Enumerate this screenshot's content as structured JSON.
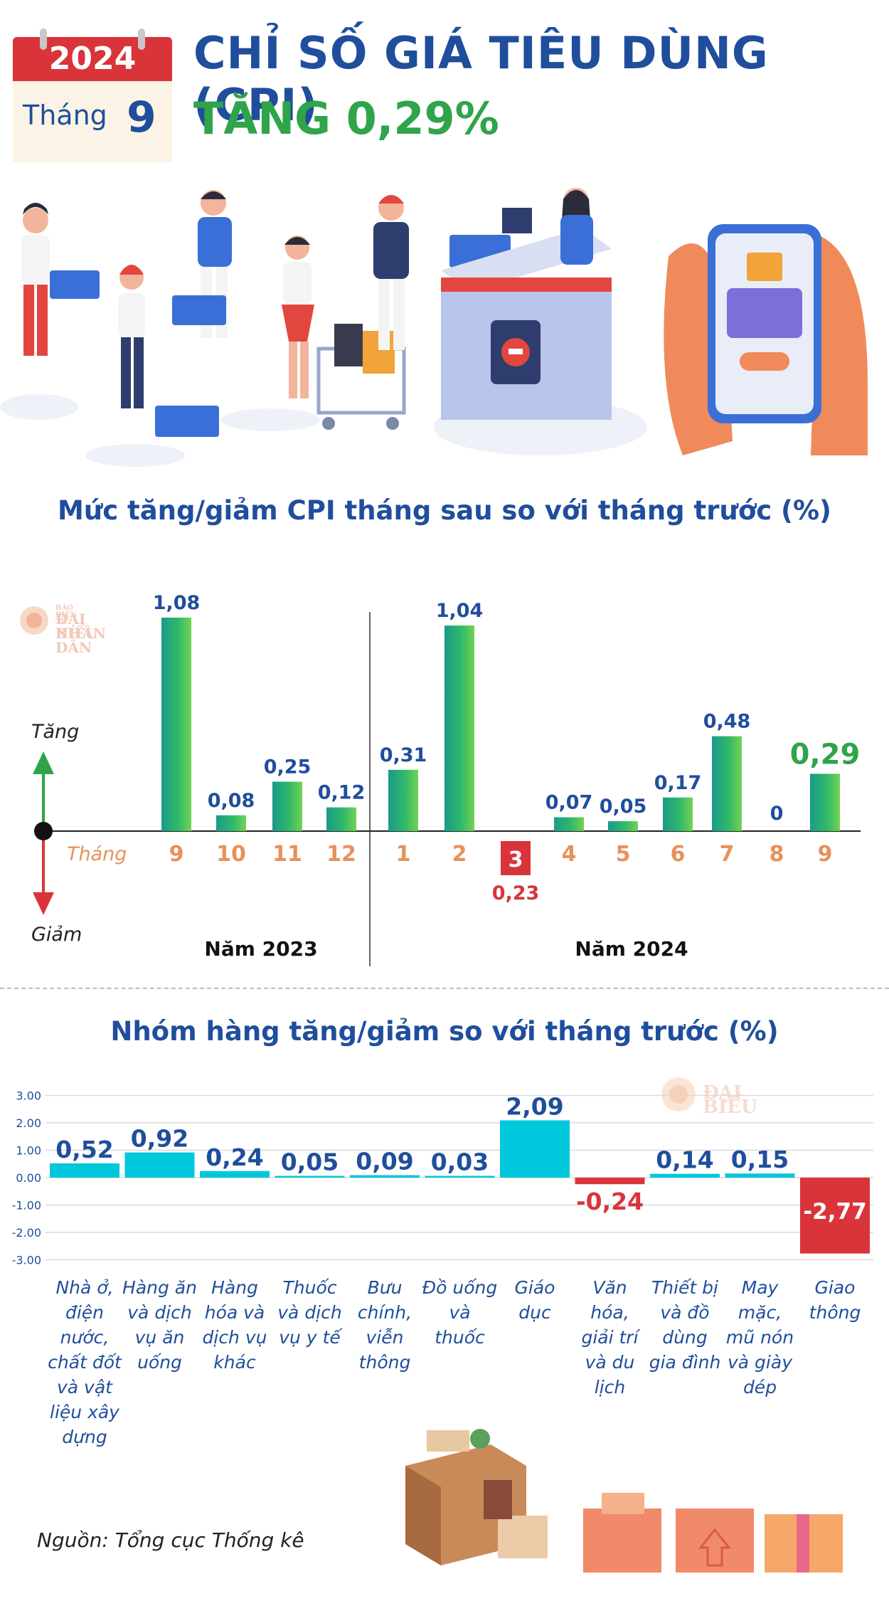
{
  "header": {
    "year": "2024",
    "month_label": "Tháng",
    "month_number": "9",
    "title": "CHỈ SỐ GIÁ TIÊU DÙNG (CPI)",
    "subtitle": "TĂNG 0,29%"
  },
  "watermark": {
    "small": "BÁO ĐIỆN TỬ",
    "line1": "ĐẠI BIỂU",
    "line2": "NHÂN DÂN"
  },
  "colors": {
    "title_blue": "#1f4e9c",
    "increase_green": "#2fa44a",
    "decrease_red": "#d9343a",
    "month_orange": "#e8915a",
    "bar_cyan": "#00c8dc"
  },
  "chart_data": [
    {
      "type": "bar",
      "title": "Mức tăng/giảm CPI tháng sau so với tháng trước (%)",
      "axis_up_label": "Tăng",
      "axis_down_label": "Giảm",
      "x_label": "Tháng",
      "groups": [
        {
          "label": "Năm 2023",
          "categories": [
            "9",
            "10",
            "11",
            "12"
          ],
          "values": [
            1.08,
            0.08,
            0.25,
            0.12
          ],
          "value_labels": [
            "1,08",
            "0,08",
            "0,25",
            "0,12"
          ]
        },
        {
          "label": "Năm 2024",
          "categories": [
            "1",
            "2",
            "3",
            "4",
            "5",
            "6",
            "7",
            "8",
            "9"
          ],
          "values": [
            0.31,
            1.04,
            -0.23,
            0.07,
            0.05,
            0.17,
            0.48,
            0,
            0.29
          ],
          "value_labels": [
            "0,31",
            "1,04",
            "0,23",
            "0,07",
            "0,05",
            "0,17",
            "0,48",
            "0",
            "0,29"
          ]
        }
      ],
      "highlight": {
        "group": 1,
        "index": 8
      }
    },
    {
      "type": "bar",
      "title": "Nhóm hàng tăng/giảm so với tháng trước (%)",
      "ylim": [
        -3,
        3
      ],
      "yticks": [
        "3.00",
        "2.00",
        "1.00",
        "0.00",
        "-1.00",
        "-2.00",
        "-3.00"
      ],
      "grid": true,
      "categories": [
        "Nhà ở, điện nước, chất đốt và vật liệu xây dựng",
        "Hàng ăn và dịch vụ ăn uống",
        "Hàng hóa và dịch vụ khác",
        "Thuốc và dịch vụ y tế",
        "Bưu chính, viễn thông",
        "Đồ uống và thuốc",
        "Giáo dục",
        "Văn hóa, giải trí và du lịch",
        "Thiết bị và đồ dùng gia đình",
        "May mặc, mũ nón và giày dép",
        "Giao thông"
      ],
      "values": [
        0.52,
        0.92,
        0.24,
        0.05,
        0.09,
        0.03,
        2.09,
        -0.24,
        0.14,
        0.15,
        -2.77
      ],
      "value_labels": [
        "0,52",
        "0,92",
        "0,24",
        "0,05",
        "0,09",
        "0,03",
        "2,09",
        "-0,24",
        "0,14",
        "0,15",
        "-2,77"
      ]
    }
  ],
  "source": "Nguồn: Tổng cục Thống kê"
}
